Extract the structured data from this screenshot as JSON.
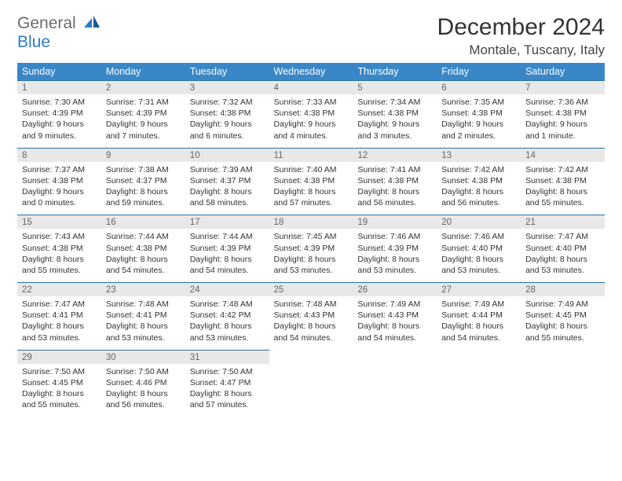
{
  "logo": {
    "text1": "General",
    "text2": "Blue"
  },
  "title": "December 2024",
  "location": "Montale, Tuscany, Italy",
  "colors": {
    "header_bg": "#3a87c8",
    "header_text": "#ffffff",
    "daynum_bg": "#e8e8e8",
    "daynum_text": "#666666",
    "border": "#2c6fa5",
    "body_text": "#333333",
    "logo_gray": "#6b6b6b",
    "logo_blue": "#2c7bc4"
  },
  "weekdays": [
    "Sunday",
    "Monday",
    "Tuesday",
    "Wednesday",
    "Thursday",
    "Friday",
    "Saturday"
  ],
  "days": [
    {
      "n": "1",
      "sr": "7:30 AM",
      "ss": "4:39 PM",
      "dl": "9 hours and 9 minutes."
    },
    {
      "n": "2",
      "sr": "7:31 AM",
      "ss": "4:39 PM",
      "dl": "9 hours and 7 minutes."
    },
    {
      "n": "3",
      "sr": "7:32 AM",
      "ss": "4:38 PM",
      "dl": "9 hours and 6 minutes."
    },
    {
      "n": "4",
      "sr": "7:33 AM",
      "ss": "4:38 PM",
      "dl": "9 hours and 4 minutes."
    },
    {
      "n": "5",
      "sr": "7:34 AM",
      "ss": "4:38 PM",
      "dl": "9 hours and 3 minutes."
    },
    {
      "n": "6",
      "sr": "7:35 AM",
      "ss": "4:38 PM",
      "dl": "9 hours and 2 minutes."
    },
    {
      "n": "7",
      "sr": "7:36 AM",
      "ss": "4:38 PM",
      "dl": "9 hours and 1 minute."
    },
    {
      "n": "8",
      "sr": "7:37 AM",
      "ss": "4:38 PM",
      "dl": "9 hours and 0 minutes."
    },
    {
      "n": "9",
      "sr": "7:38 AM",
      "ss": "4:37 PM",
      "dl": "8 hours and 59 minutes."
    },
    {
      "n": "10",
      "sr": "7:39 AM",
      "ss": "4:37 PM",
      "dl": "8 hours and 58 minutes."
    },
    {
      "n": "11",
      "sr": "7:40 AM",
      "ss": "4:38 PM",
      "dl": "8 hours and 57 minutes."
    },
    {
      "n": "12",
      "sr": "7:41 AM",
      "ss": "4:38 PM",
      "dl": "8 hours and 56 minutes."
    },
    {
      "n": "13",
      "sr": "7:42 AM",
      "ss": "4:38 PM",
      "dl": "8 hours and 56 minutes."
    },
    {
      "n": "14",
      "sr": "7:42 AM",
      "ss": "4:38 PM",
      "dl": "8 hours and 55 minutes."
    },
    {
      "n": "15",
      "sr": "7:43 AM",
      "ss": "4:38 PM",
      "dl": "8 hours and 55 minutes."
    },
    {
      "n": "16",
      "sr": "7:44 AM",
      "ss": "4:38 PM",
      "dl": "8 hours and 54 minutes."
    },
    {
      "n": "17",
      "sr": "7:44 AM",
      "ss": "4:39 PM",
      "dl": "8 hours and 54 minutes."
    },
    {
      "n": "18",
      "sr": "7:45 AM",
      "ss": "4:39 PM",
      "dl": "8 hours and 53 minutes."
    },
    {
      "n": "19",
      "sr": "7:46 AM",
      "ss": "4:39 PM",
      "dl": "8 hours and 53 minutes."
    },
    {
      "n": "20",
      "sr": "7:46 AM",
      "ss": "4:40 PM",
      "dl": "8 hours and 53 minutes."
    },
    {
      "n": "21",
      "sr": "7:47 AM",
      "ss": "4:40 PM",
      "dl": "8 hours and 53 minutes."
    },
    {
      "n": "22",
      "sr": "7:47 AM",
      "ss": "4:41 PM",
      "dl": "8 hours and 53 minutes."
    },
    {
      "n": "23",
      "sr": "7:48 AM",
      "ss": "4:41 PM",
      "dl": "8 hours and 53 minutes."
    },
    {
      "n": "24",
      "sr": "7:48 AM",
      "ss": "4:42 PM",
      "dl": "8 hours and 53 minutes."
    },
    {
      "n": "25",
      "sr": "7:48 AM",
      "ss": "4:43 PM",
      "dl": "8 hours and 54 minutes."
    },
    {
      "n": "26",
      "sr": "7:49 AM",
      "ss": "4:43 PM",
      "dl": "8 hours and 54 minutes."
    },
    {
      "n": "27",
      "sr": "7:49 AM",
      "ss": "4:44 PM",
      "dl": "8 hours and 54 minutes."
    },
    {
      "n": "28",
      "sr": "7:49 AM",
      "ss": "4:45 PM",
      "dl": "8 hours and 55 minutes."
    },
    {
      "n": "29",
      "sr": "7:50 AM",
      "ss": "4:45 PM",
      "dl": "8 hours and 55 minutes."
    },
    {
      "n": "30",
      "sr": "7:50 AM",
      "ss": "4:46 PM",
      "dl": "8 hours and 56 minutes."
    },
    {
      "n": "31",
      "sr": "7:50 AM",
      "ss": "4:47 PM",
      "dl": "8 hours and 57 minutes."
    }
  ],
  "labels": {
    "sunrise": "Sunrise: ",
    "sunset": "Sunset: ",
    "daylight": "Daylight: "
  }
}
